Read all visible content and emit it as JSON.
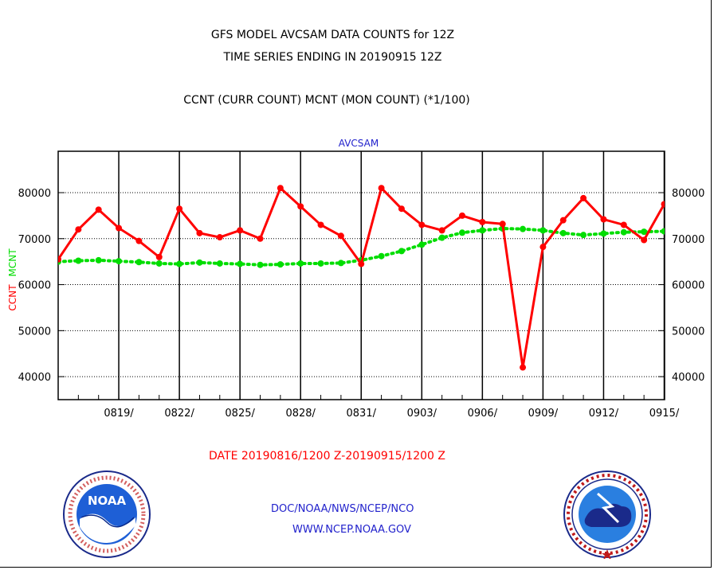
{
  "header": {
    "title_line1": "GFS MODEL AVCSAM DATA COUNTS for 12Z",
    "title_line2": "TIME SERIES ENDING IN 20190915 12Z",
    "subtitle": "CCNT (CURR COUNT) MCNT (MON COUNT) (*1/100)"
  },
  "footer": {
    "date_range": "DATE 20190816/1200 Z-20190915/1200 Z",
    "credit_line1": "DOC/NOAA/NWS/NCEP/NCO",
    "credit_line2": "WWW.NCEP.NOAA.GOV"
  },
  "logos": {
    "left": {
      "icon": "noaa-logo-icon",
      "text": "NOAA"
    },
    "right": {
      "icon": "nws-logo-icon"
    }
  },
  "colors": {
    "ccnt": "#ff0000",
    "mcnt": "#00dd00",
    "panel_label": "#2222cc",
    "axis": "#000000"
  },
  "chart_data": {
    "type": "line",
    "panel_label": "AVCSAM",
    "ylabel_ccnt": "CCNT",
    "ylabel_mcnt": "MCNT",
    "ylim": [
      35000,
      89000
    ],
    "yticks": [
      40000,
      50000,
      60000,
      70000,
      80000
    ],
    "ytick_labels": [
      "40000",
      "50000",
      "60000",
      "70000",
      "80000"
    ],
    "x_range": [
      "20190816",
      "20190915"
    ],
    "xtick_labels": [
      "0819/",
      "0822/",
      "0825/",
      "0828/",
      "0831/",
      "0903/",
      "0906/",
      "0909/",
      "0912/",
      "0915/"
    ],
    "grid": "horizontal dotted at y ticks",
    "x": [
      "20190816",
      "20190817",
      "20190818",
      "20190819",
      "20190820",
      "20190821",
      "20190822",
      "20190823",
      "20190824",
      "20190825",
      "20190826",
      "20190827",
      "20190828",
      "20190829",
      "20190830",
      "20190831",
      "20190901",
      "20190902",
      "20190903",
      "20190904",
      "20190905",
      "20190906",
      "20190907",
      "20190908",
      "20190909",
      "20190910",
      "20190911",
      "20190912",
      "20190913",
      "20190914",
      "20190915"
    ],
    "series": [
      {
        "name": "CCNT",
        "values": [
          65500,
          72000,
          76300,
          72300,
          69500,
          66000,
          76500,
          71200,
          70300,
          71800,
          70000,
          81000,
          77000,
          73000,
          70600,
          64500,
          81000,
          76500,
          73000,
          71800,
          75000,
          73600,
          73200,
          42000,
          68200,
          74000,
          78800,
          74200,
          73000,
          69700,
          77500
        ]
      },
      {
        "name": "MCNT",
        "values": [
          65000,
          65200,
          65300,
          65100,
          64900,
          64600,
          64500,
          64800,
          64600,
          64500,
          64300,
          64400,
          64600,
          64600,
          64700,
          65300,
          66200,
          67300,
          68700,
          70200,
          71300,
          71800,
          72200,
          72100,
          71800,
          71200,
          70800,
          71100,
          71400,
          71500,
          71600
        ]
      }
    ]
  }
}
